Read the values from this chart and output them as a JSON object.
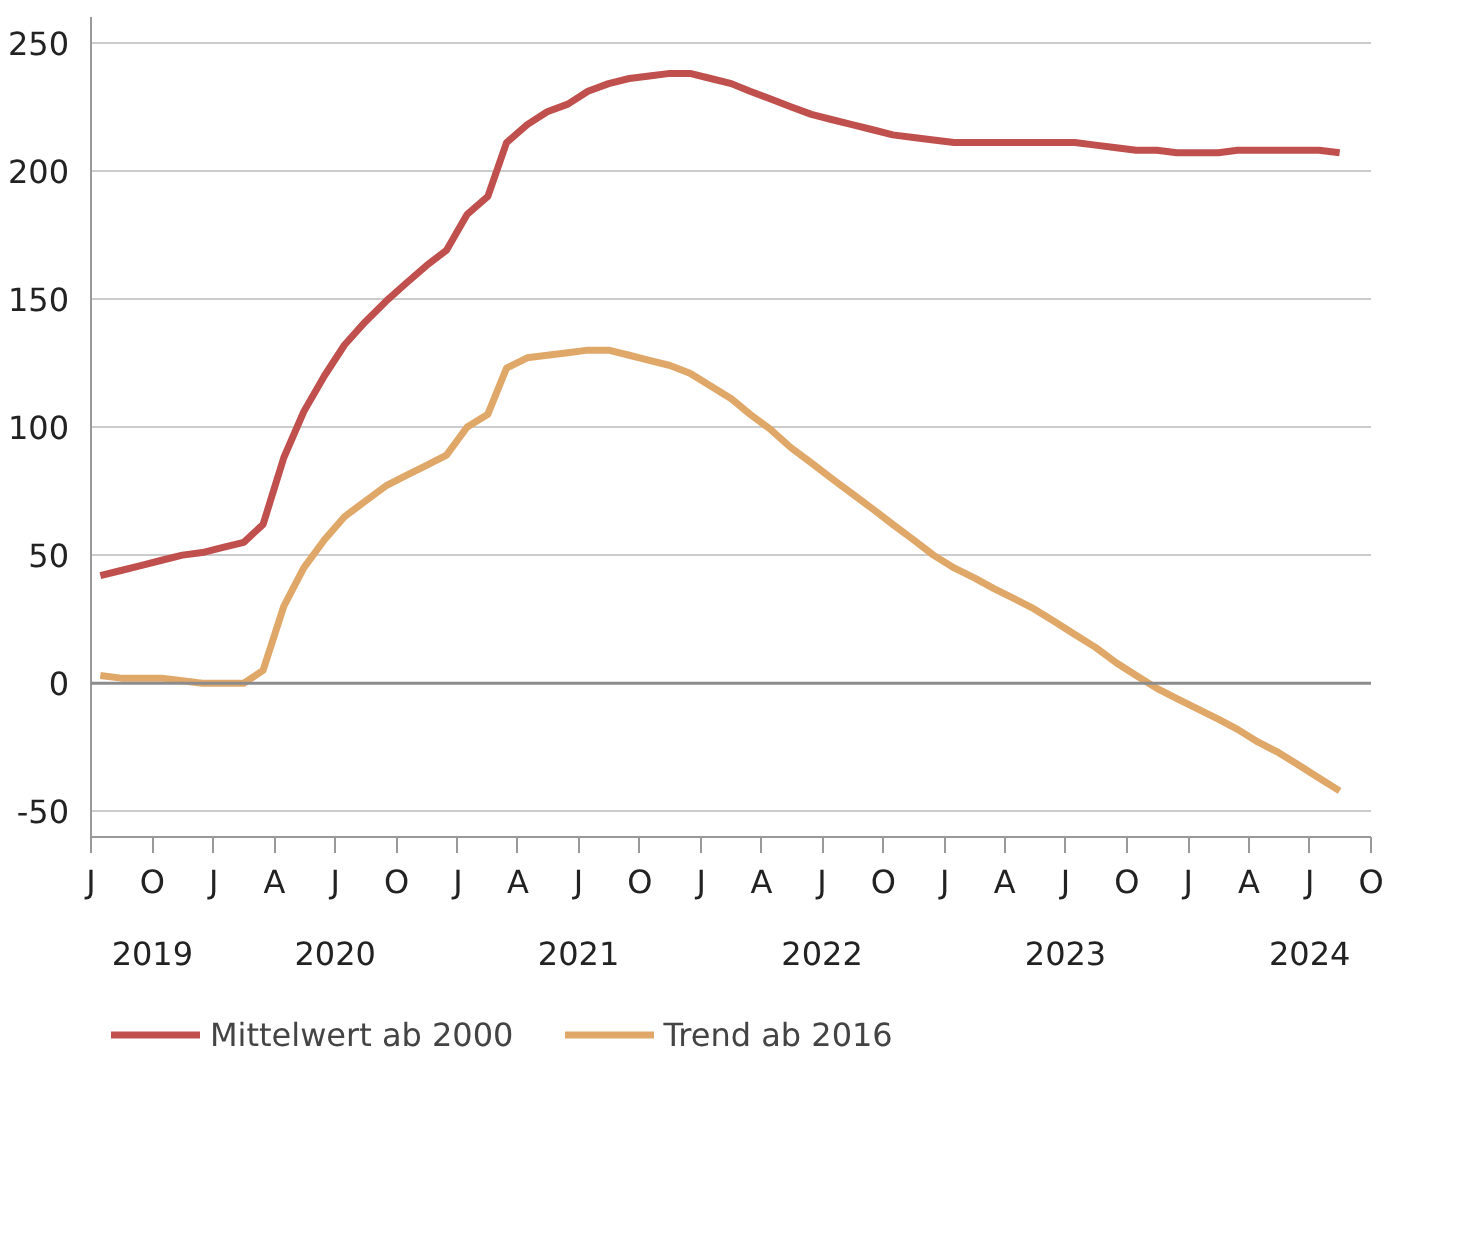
{
  "chart_data": {
    "type": "line",
    "x": [
      "2019-07-15",
      "2019-08-15",
      "2019-09-15",
      "2019-10-15",
      "2019-11-15",
      "2019-12-15",
      "2020-01-15",
      "2020-02-15",
      "2020-03-15",
      "2020-04-15",
      "2020-05-15",
      "2020-06-15",
      "2020-07-15",
      "2020-08-15",
      "2020-09-15",
      "2020-10-15",
      "2020-11-15",
      "2020-12-15",
      "2021-01-15",
      "2021-02-15",
      "2021-03-15",
      "2021-04-15",
      "2021-05-15",
      "2021-06-15",
      "2021-07-15",
      "2021-08-15",
      "2021-09-15",
      "2021-10-15",
      "2021-11-15",
      "2021-12-15",
      "2022-01-15",
      "2022-02-15",
      "2022-03-15",
      "2022-04-15",
      "2022-05-15",
      "2022-06-15",
      "2022-07-15",
      "2022-08-15",
      "2022-09-15",
      "2022-10-15",
      "2022-11-15",
      "2022-12-15",
      "2023-01-15",
      "2023-02-15",
      "2023-03-15",
      "2023-04-15",
      "2023-05-15",
      "2023-06-15",
      "2023-07-15",
      "2023-08-15",
      "2023-09-15",
      "2023-10-15",
      "2023-11-15",
      "2023-12-15",
      "2024-01-15",
      "2024-02-15",
      "2024-03-15",
      "2024-04-15",
      "2024-05-15",
      "2024-06-15",
      "2024-07-15",
      "2024-08-15"
    ],
    "series": [
      {
        "name": "Mittelwert ab 2000",
        "color": "#c0504d",
        "values": [
          42,
          44,
          46,
          48,
          50,
          51,
          53,
          55,
          62,
          88,
          106,
          120,
          132,
          141,
          149,
          156,
          163,
          169,
          183,
          190,
          211,
          218,
          223,
          226,
          231,
          234,
          236,
          237,
          238,
          238,
          236,
          234,
          231,
          228,
          225,
          222,
          220,
          218,
          216,
          214,
          213,
          212,
          211,
          211,
          211,
          211,
          211,
          211,
          211,
          210,
          209,
          208,
          208,
          207,
          207,
          207,
          208,
          208,
          208,
          208,
          208,
          207
        ]
      },
      {
        "name": "Trend ab 2016",
        "color": "#e0a868",
        "values": [
          3,
          2,
          2,
          2,
          1,
          0,
          0,
          0,
          5,
          30,
          45,
          56,
          65,
          71,
          77,
          81,
          85,
          89,
          100,
          105,
          123,
          127,
          128,
          129,
          130,
          130,
          128,
          126,
          124,
          121,
          116,
          111,
          105,
          99,
          92,
          86,
          80,
          74,
          68,
          62,
          56,
          50,
          45,
          41,
          37,
          33,
          29,
          24,
          19,
          14,
          8,
          3,
          -2,
          -6,
          -10,
          -14,
          -18,
          -23,
          -27,
          -32,
          -37,
          -42
        ]
      }
    ],
    "xlim": [
      "2019-07-01",
      "2024-10-01"
    ],
    "xticks": [
      {
        "value": "2019-07-01",
        "label": "J"
      },
      {
        "value": "2019-10-01",
        "label": "O\n2019"
      },
      {
        "value": "2020-01-01",
        "label": "J"
      },
      {
        "value": "2020-04-01",
        "label": "A"
      },
      {
        "value": "2020-07-01",
        "label": "J\n2020"
      },
      {
        "value": "2020-10-01",
        "label": "O"
      },
      {
        "value": "2021-01-01",
        "label": "J"
      },
      {
        "value": "2021-04-01",
        "label": "A"
      },
      {
        "value": "2021-07-01",
        "label": "J\n2021"
      },
      {
        "value": "2021-10-01",
        "label": "O"
      },
      {
        "value": "2022-01-01",
        "label": "J"
      },
      {
        "value": "2022-04-01",
        "label": "A"
      },
      {
        "value": "2022-07-01",
        "label": "J\n2022"
      },
      {
        "value": "2022-10-01",
        "label": "O"
      },
      {
        "value": "2023-01-01",
        "label": "J"
      },
      {
        "value": "2023-04-01",
        "label": "A"
      },
      {
        "value": "2023-07-01",
        "label": "J\n2023"
      },
      {
        "value": "2023-10-01",
        "label": "O"
      },
      {
        "value": "2024-01-01",
        "label": "J"
      },
      {
        "value": "2024-04-01",
        "label": "A"
      },
      {
        "value": "2024-07-01",
        "label": "J\n2024"
      },
      {
        "value": "2024-10-01",
        "label": "O"
      }
    ],
    "ylim": [
      -60,
      260
    ],
    "yticks": [
      -50,
      0,
      50,
      100,
      150,
      200,
      250
    ],
    "grid": "y",
    "legend": "bottom",
    "line_style": "solid",
    "ref_lines": [
      {
        "axis": "y",
        "value": 0,
        "color": "#8c8c8c"
      }
    ]
  }
}
